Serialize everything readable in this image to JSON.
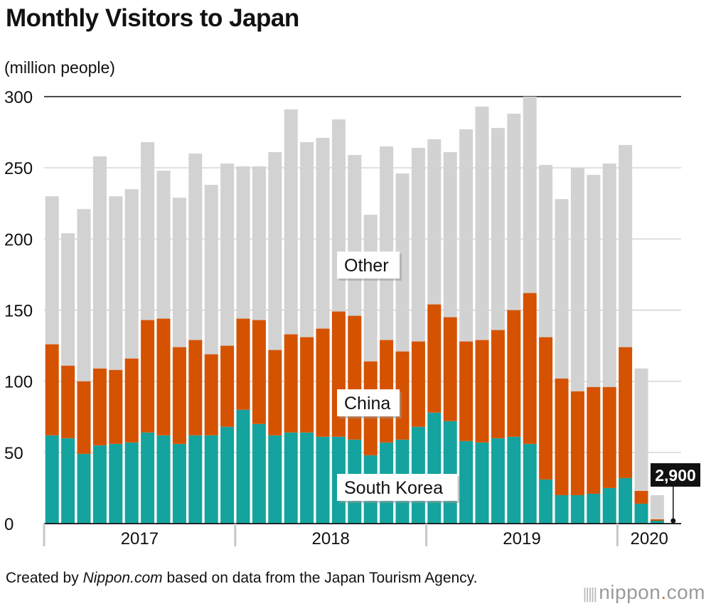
{
  "title": "Monthly Visitors to Japan",
  "unit_label": "(million people)",
  "footer": {
    "prefix": "Created by ",
    "source_name": "Nippon.com",
    "suffix": " based on data from the Japan Tourism Agency."
  },
  "brand": {
    "name": "nippon",
    "dot": ".",
    "tld": "com"
  },
  "chart_data": {
    "type": "bar",
    "stacked": true,
    "title": "Monthly Visitors to Japan",
    "ylabel": "(million people)",
    "ylim": [
      0,
      300
    ],
    "yticks": [
      0,
      50,
      100,
      150,
      200,
      250,
      300
    ],
    "year_labels": [
      "2017",
      "2018",
      "2019",
      "2020"
    ],
    "year_month_counts": [
      12,
      12,
      12,
      4
    ],
    "categories": [
      "2017-01",
      "2017-02",
      "2017-03",
      "2017-04",
      "2017-05",
      "2017-06",
      "2017-07",
      "2017-08",
      "2017-09",
      "2017-10",
      "2017-11",
      "2017-12",
      "2018-01",
      "2018-02",
      "2018-03",
      "2018-04",
      "2018-05",
      "2018-06",
      "2018-07",
      "2018-08",
      "2018-09",
      "2018-10",
      "2018-11",
      "2018-12",
      "2019-01",
      "2019-02",
      "2019-03",
      "2019-04",
      "2019-05",
      "2019-06",
      "2019-07",
      "2019-08",
      "2019-09",
      "2019-10",
      "2019-11",
      "2019-12",
      "2020-01",
      "2020-02",
      "2020-03",
      "2020-04"
    ],
    "series": [
      {
        "name": "South Korea",
        "color": "#14a39e",
        "values": [
          62,
          60,
          49,
          55,
          56,
          57,
          64,
          62,
          56,
          62,
          62,
          68,
          80,
          70,
          62,
          64,
          64,
          61,
          61,
          59,
          48,
          57,
          59,
          68,
          78,
          72,
          58,
          57,
          60,
          61,
          56,
          31,
          20,
          20,
          21,
          25,
          32,
          14,
          2,
          0.1
        ]
      },
      {
        "name": "China",
        "color": "#d55200",
        "values": [
          64,
          51,
          51,
          54,
          52,
          59,
          79,
          82,
          68,
          67,
          57,
          57,
          64,
          73,
          60,
          69,
          67,
          76,
          88,
          87,
          66,
          72,
          62,
          60,
          76,
          73,
          70,
          72,
          76,
          89,
          106,
          100,
          82,
          73,
          75,
          71,
          92,
          9,
          1,
          0.1
        ]
      },
      {
        "name": "Other",
        "color": "#d2d2d2",
        "values": [
          104,
          93,
          121,
          149,
          122,
          119,
          125,
          104,
          105,
          131,
          119,
          128,
          107,
          108,
          139,
          158,
          137,
          134,
          135,
          113,
          103,
          136,
          125,
          136,
          116,
          116,
          149,
          164,
          142,
          138,
          138,
          121,
          126,
          157,
          149,
          157,
          142,
          86,
          17,
          0.1
        ]
      }
    ],
    "series_labels": [
      "Other",
      "China",
      "South Korea"
    ],
    "annotation": {
      "category": "2020-04",
      "text": "2,900"
    }
  }
}
